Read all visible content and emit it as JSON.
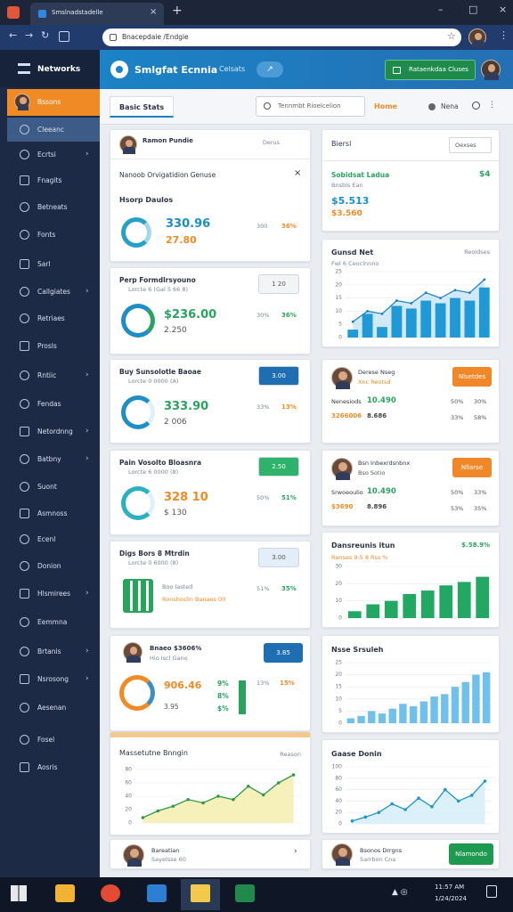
{
  "browser": {
    "tab_title": "Smslnadstadelle",
    "url": "Bnacepdaie /Endgie"
  },
  "app": {
    "brand": "Networks",
    "title": "Smlgfat Ecnnia",
    "header_link": "Celsats",
    "header_button": "Rataenkdaa Cluses"
  },
  "sidebar": {
    "items": [
      "Bssons",
      "Cleeanc",
      "Ecrtsi",
      "Fnagits",
      "Betneats",
      "Fonts",
      "Sarl",
      "Callgiates",
      "Retriaes",
      "Prosls",
      "Rntiic",
      "Fendas",
      "Netordnng",
      "Batbny",
      "Suont",
      "Asmnoss",
      "Ecenl",
      "Donion",
      "Hlsmirees",
      "Eemmna",
      "Brtanis",
      "Nsrosong",
      "Aesenan",
      "Fosel",
      "Aosris"
    ]
  },
  "toolbar": {
    "tab": "Basic Stats",
    "search": "Tennmbt Rioelcelion",
    "home": "Home",
    "help": "Nena"
  },
  "left_cards": [
    {
      "name": "Ramon Pundie",
      "badge": "Derus",
      "heading": "Nanoob Orvigatidion Genuse",
      "subheading": "Hsorp Daulos",
      "primary": "330.96",
      "secondary": "27.80",
      "stats": [
        "300",
        "36%"
      ]
    },
    {
      "title": "Perp Formdlrsyouno",
      "subtitle": "Lorcte 6 (Gal 5 66 8)",
      "button": "1 20",
      "primary": "$236.00",
      "secondary": "2.250",
      "stats": [
        "30%",
        "36%"
      ]
    },
    {
      "title": "Buy Sunsolotle Baoae",
      "subtitle": "Lorcte 0 0000 (A)",
      "button": "3.00",
      "primary": "333.90",
      "secondary": "2 006",
      "stats": [
        "33%",
        "13%"
      ]
    },
    {
      "title": "Pain Vosolto Bloasnra",
      "subtitle": "Lorcte 6 0000 (8)",
      "button": "2.50",
      "primary": "328 10",
      "secondary": "$ 130",
      "stats": [
        "50%",
        "51%"
      ]
    },
    {
      "title": "Digs Bors 8 Mtrdin",
      "subtitle": "Lorcte 0 6000 (8)",
      "button": "3.00",
      "primary": "Boo lasted",
      "secondary": "Ronshoslin Banaes 00",
      "stats": [
        "51%",
        "35%"
      ]
    },
    {
      "name": "Bnaeo $3606%",
      "detail": "Hio Iscl Gano",
      "button": "3.85",
      "primary": "906.46",
      "secondary": "3.95",
      "mid": [
        "9%",
        "8%",
        "$%"
      ],
      "stats": [
        "13%",
        "15%"
      ]
    },
    {
      "title": "Massetutne Bnngin",
      "link": "Reason",
      "chart": {
        "type": "line",
        "values": [
          8,
          18,
          25,
          35,
          30,
          40,
          35,
          55,
          42,
          60,
          72
        ],
        "ylim": [
          0,
          80
        ],
        "yticks": [
          0,
          20,
          40,
          60,
          80
        ]
      }
    },
    {
      "name": "Bareatian",
      "detail": "Sayelsse 60"
    }
  ],
  "right_cards": [
    {
      "title": "Biersl",
      "dropdown": "Oexses",
      "heading": "Sobidsat Ladua",
      "subheading": "Bnsbis Ean",
      "primary": "$5.513",
      "secondary": "$3.560",
      "badge": "$4"
    },
    {
      "title": "Gunsd Net",
      "subtitle": "Fwl 6 Ceoclnnno",
      "link": "Reoldses",
      "chart": {
        "type": "bar",
        "values": [
          3,
          9,
          4,
          12,
          11,
          14,
          13,
          15,
          14,
          19
        ],
        "trend": [
          6,
          10,
          9,
          14,
          13,
          17,
          15,
          18,
          17,
          22
        ],
        "ylim": [
          0,
          25
        ],
        "yticks": [
          0,
          5,
          10,
          15,
          20,
          25
        ]
      }
    },
    {
      "name": "Derese Nseg",
      "detail": "Xnc Reotsd",
      "button": "Nlsetdes",
      "line1_label": "Nenesiods",
      "line1_value": "10.490",
      "line2_label": "3266006",
      "line2_value": "8.686",
      "stats": [
        "50%",
        "30%",
        "33%",
        "58%"
      ]
    },
    {
      "name": "Bsn Inbexrdsnbnx",
      "detail": "Bso Sotio",
      "button": "Nllarse",
      "line1_label": "Srwoeoulio",
      "line1_value": "10.490",
      "line2_label": "$3690",
      "line2_value": "8.896",
      "stats": [
        "50%",
        "33%",
        "53%",
        "35%"
      ]
    },
    {
      "title": "Dansreunis itun",
      "link": "$.58.9%",
      "subtitle": "Ranses 9:5 8 Rss %",
      "chart": {
        "type": "bar",
        "values": [
          4,
          8,
          10,
          14,
          16,
          19,
          21,
          24
        ],
        "ylim": [
          0,
          30
        ],
        "yticks": [
          0,
          10,
          20,
          30
        ]
      }
    },
    {
      "title": "Nsse Srsuleh",
      "chart": {
        "type": "bar",
        "values": [
          2,
          3,
          5,
          4,
          6,
          8,
          7,
          9,
          11,
          12,
          15,
          17,
          20,
          21
        ],
        "ylim": [
          0,
          25
        ],
        "yticks": [
          0,
          5,
          10,
          15,
          20,
          25
        ]
      }
    },
    {
      "title": "Gaase Donin",
      "chart": {
        "type": "line",
        "values": [
          5,
          12,
          20,
          35,
          25,
          45,
          30,
          60,
          40,
          50,
          75
        ],
        "ylim": [
          0,
          100
        ],
        "yticks": [
          0,
          20,
          40,
          60,
          80,
          100
        ]
      }
    },
    {
      "name": "Bsonos Drrgns",
      "detail": "Sarrbon Cna",
      "button": "Nlamondo"
    }
  ],
  "taskbar": {
    "time": "11:57 AM",
    "date": "1/24/2024"
  }
}
